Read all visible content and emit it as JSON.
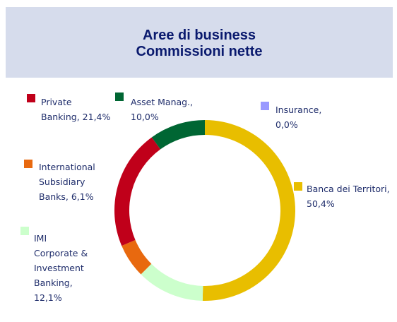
{
  "chart_data": {
    "type": "donut",
    "title": "Aree di business",
    "subtitle": "Commissioni nette",
    "labels": [
      "Banca dei Territori,  50,4%",
      "IMI Corporate & Investment Banking, 12,1%",
      "International Subsidiary Banks, 6,1%",
      "Private Banking, 21,4%",
      "Asset Manag., 10,0%",
      "Insurance, 0,0%"
    ],
    "values": [
      50.4,
      12.1,
      6.1,
      21.4,
      10.0,
      0.0
    ],
    "colors": [
      "#e8be00",
      "#ccffcc",
      "#e8690f",
      "#c0001a",
      "#006633",
      "#9999ff"
    ]
  }
}
